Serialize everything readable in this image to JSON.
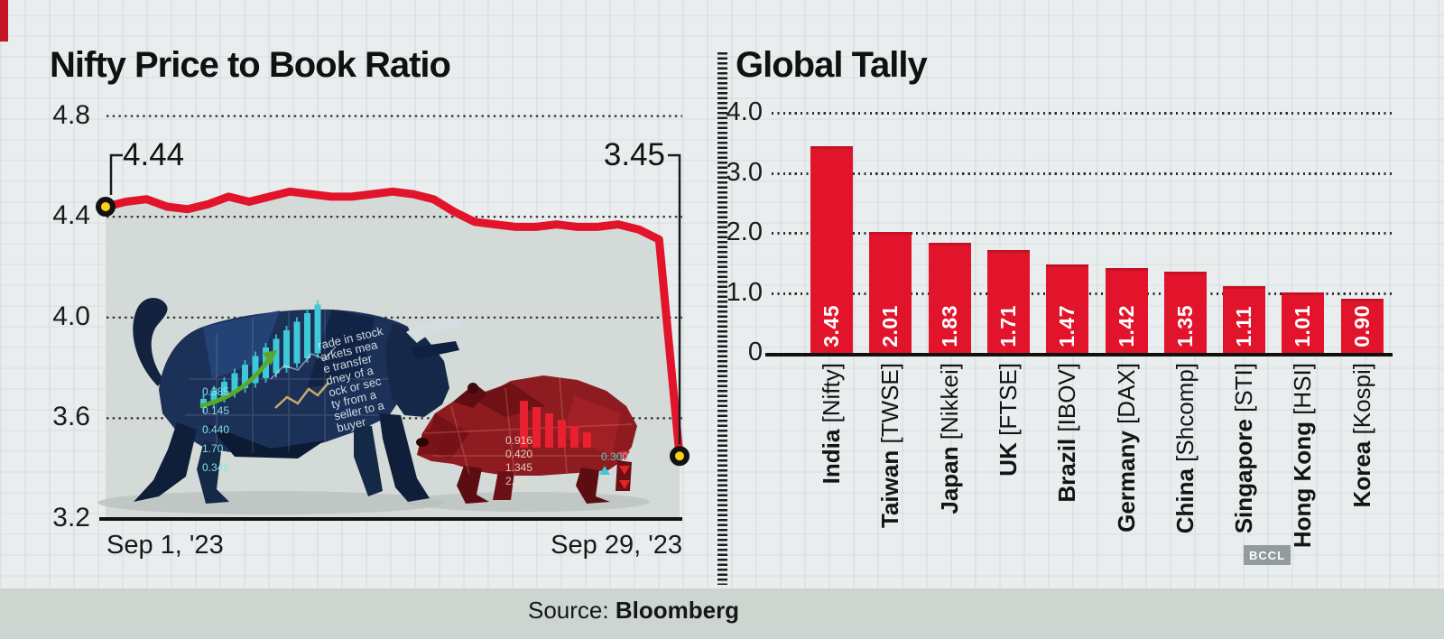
{
  "colors": {
    "line_red": "#e2142c",
    "bar_red": "#e2142c",
    "marker_yellow": "#fccf1b",
    "area_fill": "#d4dad7",
    "background": "#e9edee",
    "footer_bg": "#cdd5d0",
    "text_dark": "#161616"
  },
  "left_chart": {
    "title": "Nifty Price to Book Ratio",
    "start_label": "4.44",
    "end_label": "3.45",
    "x_left": "Sep 1, '23",
    "x_right": "Sep 29, '23",
    "y_ticks": [
      {
        "label": "4.8",
        "value": 4.8
      },
      {
        "label": "4.4",
        "value": 4.4
      },
      {
        "label": "4.0",
        "value": 4.0
      },
      {
        "label": "3.6",
        "value": 3.6
      },
      {
        "label": "3.2",
        "value": 3.2
      }
    ]
  },
  "right_chart": {
    "title": "Global Tally",
    "y_ticks": [
      {
        "label": "4.0",
        "value": 4.0
      },
      {
        "label": "3.0",
        "value": 3.0
      },
      {
        "label": "2.0",
        "value": 2.0
      },
      {
        "label": "1.0",
        "value": 1.0
      },
      {
        "label": "0",
        "value": 0
      }
    ],
    "bars": [
      {
        "country": "India",
        "index": "[Nifty]",
        "label": "3.45",
        "value": 3.45
      },
      {
        "country": "Taiwan",
        "index": "[TWSE]",
        "label": "2.01",
        "value": 2.01
      },
      {
        "country": "Japan",
        "index": "[Nikkei]",
        "label": "1.83",
        "value": 1.83
      },
      {
        "country": "UK",
        "index": "[FTSE]",
        "label": "1.71",
        "value": 1.71
      },
      {
        "country": "Brazil",
        "index": "[IBOV]",
        "label": "1.47",
        "value": 1.47
      },
      {
        "country": "Germany",
        "index": "[DAX]",
        "label": "1.42",
        "value": 1.42
      },
      {
        "country": "China",
        "index": "[Shcomp]",
        "label": "1.35",
        "value": 1.35
      },
      {
        "country": "Singapore",
        "index": "[STI]",
        "label": "1.11",
        "value": 1.11
      },
      {
        "country": "Hong Kong",
        "index": "[HSI]",
        "label": "1.01",
        "value": 1.01
      },
      {
        "country": "Korea",
        "index": "[Kospi]",
        "label": "0.90",
        "value": 0.9
      }
    ]
  },
  "source": {
    "prefix": "Source:",
    "name": "Bloomberg"
  },
  "watermark": "BCCL",
  "illustration": {
    "bull_lines": [
      "rade in stock",
      "arkets mea",
      "e transfer",
      "dney of a",
      "ock or sec",
      "ty from a",
      "seller to a",
      "buyer"
    ],
    "bull_numbers": [
      "0.385",
      "0.145",
      "0.440",
      "1.70",
      "0.345"
    ],
    "bear_numbers": [
      "0.916",
      "0.420",
      "1.345",
      "2.14"
    ],
    "bear_tick": "0.300"
  },
  "chart_data": [
    {
      "type": "line",
      "title": "Nifty Price to Book Ratio",
      "x_start": "Sep 1, '23",
      "x_end": "Sep 29, '23",
      "x_unit": "trading day of September 2023",
      "values": [
        4.44,
        4.46,
        4.47,
        4.44,
        4.43,
        4.45,
        4.48,
        4.46,
        4.48,
        4.5,
        4.49,
        4.48,
        4.48,
        4.49,
        4.5,
        4.49,
        4.47,
        4.42,
        4.38,
        4.37,
        4.36,
        4.36,
        4.37,
        4.36,
        4.36,
        4.37,
        4.35,
        4.31,
        3.45
      ],
      "point_labels": {
        "start": 4.44,
        "end": 3.45
      },
      "ylim": [
        3.2,
        4.8
      ],
      "yticks": [
        3.2,
        3.6,
        4.0,
        4.4,
        4.8
      ],
      "grid": "dotted-horizontal",
      "legend": "none"
    },
    {
      "type": "bar",
      "title": "Global Tally",
      "categories": [
        "India [Nifty]",
        "Taiwan [TWSE]",
        "Japan [Nikkei]",
        "UK [FTSE]",
        "Brazil [IBOV]",
        "Germany [DAX]",
        "China [Shcomp]",
        "Singapore [STI]",
        "Hong Kong [HSI]",
        "Korea [Kospi]"
      ],
      "values": [
        3.45,
        2.01,
        1.83,
        1.71,
        1.47,
        1.42,
        1.35,
        1.11,
        1.01,
        0.9
      ],
      "ylim": [
        0,
        4.0
      ],
      "yticks": [
        0,
        1.0,
        2.0,
        3.0,
        4.0
      ],
      "grid": "dotted-horizontal",
      "value_labels": true,
      "legend": "none"
    }
  ]
}
